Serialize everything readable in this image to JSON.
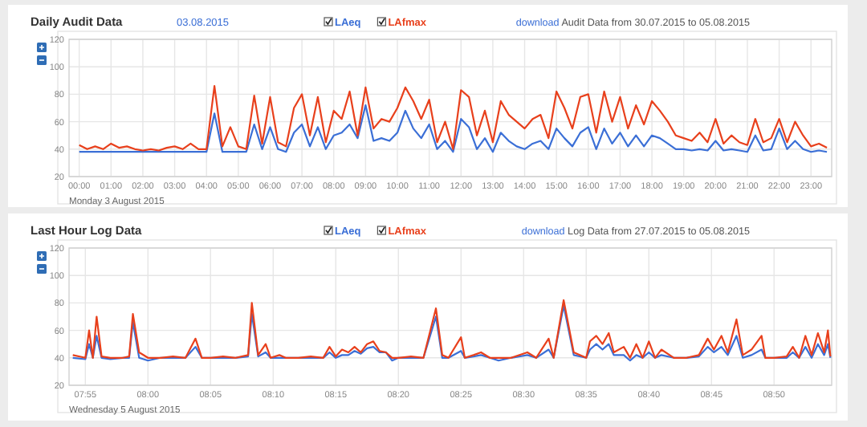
{
  "chart_data": [
    {
      "type": "line",
      "title": "Daily Audit Data",
      "subtitle": "03.08.2015",
      "annotations": [
        "download Audit Data from 30.07.2015 to 05.08.2015",
        "Monday 3 August 2015"
      ],
      "legend": "top",
      "grid": true,
      "marker": "none",
      "line_style": "solid",
      "x": [
        0,
        0.25,
        0.5,
        0.75,
        1,
        1.25,
        1.5,
        1.75,
        2,
        2.25,
        2.5,
        2.75,
        3,
        3.25,
        3.5,
        3.75,
        4,
        4.25,
        4.5,
        4.75,
        5,
        5.25,
        5.5,
        5.75,
        6,
        6.25,
        6.5,
        6.75,
        7,
        7.25,
        7.5,
        7.75,
        8,
        8.25,
        8.5,
        8.75,
        9,
        9.25,
        9.5,
        9.75,
        10,
        10.25,
        10.5,
        10.75,
        11,
        11.25,
        11.5,
        11.75,
        12,
        12.25,
        12.5,
        12.75,
        13,
        13.25,
        13.5,
        13.75,
        14,
        14.25,
        14.5,
        14.75,
        15,
        15.25,
        15.5,
        15.75,
        16,
        16.25,
        16.5,
        16.75,
        17,
        17.25,
        17.5,
        17.75,
        18,
        18.25,
        18.5,
        18.75,
        19,
        19.25,
        19.5,
        19.75,
        20,
        20.25,
        20.5,
        20.75,
        21,
        21.25,
        21.5,
        21.75,
        22,
        22.25,
        22.5,
        22.75,
        23,
        23.25,
        23.5
      ],
      "series": [
        {
          "name": "LAeq",
          "color": "#3b6fd6",
          "values": [
            38,
            38,
            38,
            38,
            38,
            38,
            38,
            38,
            38,
            38,
            38,
            38,
            38,
            38,
            38,
            38,
            38,
            66,
            38,
            38,
            38,
            38,
            58,
            40,
            56,
            40,
            38,
            52,
            58,
            42,
            56,
            40,
            50,
            52,
            58,
            48,
            72,
            46,
            48,
            46,
            52,
            68,
            55,
            48,
            58,
            40,
            46,
            38,
            62,
            56,
            40,
            48,
            38,
            52,
            46,
            42,
            40,
            44,
            46,
            40,
            55,
            48,
            42,
            52,
            56,
            40,
            55,
            44,
            52,
            42,
            50,
            42,
            50,
            48,
            44,
            40,
            40,
            39,
            40,
            39,
            46,
            39,
            40,
            39,
            38,
            50,
            39,
            40,
            55,
            40,
            46,
            40,
            38,
            39,
            38
          ]
        },
        {
          "name": "LAfmax",
          "color": "#e8401c",
          "values": [
            43,
            40,
            42,
            40,
            44,
            41,
            42,
            40,
            39,
            40,
            39,
            41,
            42,
            40,
            44,
            40,
            40,
            86,
            42,
            56,
            42,
            40,
            79,
            44,
            78,
            45,
            42,
            70,
            80,
            50,
            78,
            45,
            68,
            62,
            82,
            50,
            85,
            55,
            62,
            60,
            70,
            85,
            75,
            62,
            76,
            45,
            60,
            40,
            83,
            78,
            50,
            68,
            45,
            75,
            65,
            60,
            55,
            62,
            65,
            48,
            82,
            70,
            55,
            78,
            80,
            52,
            82,
            60,
            78,
            55,
            72,
            58,
            75,
            68,
            60,
            50,
            48,
            46,
            52,
            45,
            62,
            44,
            50,
            45,
            43,
            62,
            45,
            48,
            62,
            45,
            60,
            50,
            42,
            44,
            41
          ]
        }
      ],
      "xlim": [
        -0.32,
        23.65
      ],
      "xticks": [
        {
          "value": 0,
          "label": "00:00"
        },
        {
          "value": 1,
          "label": "01:00"
        },
        {
          "value": 2,
          "label": "02:00"
        },
        {
          "value": 3,
          "label": "03:00"
        },
        {
          "value": 4,
          "label": "04:00"
        },
        {
          "value": 5,
          "label": "05:00"
        },
        {
          "value": 6,
          "label": "06:00"
        },
        {
          "value": 7,
          "label": "07:00"
        },
        {
          "value": 8,
          "label": "08:00"
        },
        {
          "value": 9,
          "label": "09:00"
        },
        {
          "value": 10,
          "label": "10:00"
        },
        {
          "value": 11,
          "label": "11:00"
        },
        {
          "value": 12,
          "label": "12:00"
        },
        {
          "value": 13,
          "label": "13:00"
        },
        {
          "value": 14,
          "label": "14:00"
        },
        {
          "value": 15,
          "label": "15:00"
        },
        {
          "value": 16,
          "label": "16:00"
        },
        {
          "value": 17,
          "label": "17:00"
        },
        {
          "value": 18,
          "label": "18:00"
        },
        {
          "value": 19,
          "label": "19:00"
        },
        {
          "value": 20,
          "label": "20:00"
        },
        {
          "value": 21,
          "label": "21:00"
        },
        {
          "value": 22,
          "label": "22:00"
        },
        {
          "value": 23,
          "label": "23:00"
        }
      ],
      "ylim": [
        20,
        120
      ],
      "yticks": [
        20,
        40,
        60,
        80,
        100,
        120
      ]
    },
    {
      "type": "line",
      "title": "Last Hour Log Data",
      "annotations": [
        "download Log Data from 27.07.2015 to 05.08.2015",
        "Wednesday 5 August 2015"
      ],
      "legend": "top",
      "grid": true,
      "marker": "none",
      "line_style": "solid",
      "x": [
        7.9,
        7.9167,
        7.9217,
        7.9267,
        7.9317,
        7.9383,
        7.95,
        7.9667,
        7.975,
        7.98,
        7.9883,
        8.0,
        8.0167,
        8.0333,
        8.05,
        8.0633,
        8.0717,
        8.0833,
        8.1,
        8.1167,
        8.1333,
        8.1383,
        8.1467,
        8.1567,
        8.1633,
        8.175,
        8.1833,
        8.2,
        8.2167,
        8.2333,
        8.2417,
        8.25,
        8.2583,
        8.2667,
        8.275,
        8.2833,
        8.2917,
        8.3,
        8.3083,
        8.3167,
        8.325,
        8.3333,
        8.35,
        8.3667,
        8.3833,
        8.3917,
        8.4,
        8.4167,
        8.4217,
        8.4333,
        8.4433,
        8.455,
        8.4667,
        8.4833,
        8.505,
        8.5167,
        8.5333,
        8.54,
        8.5533,
        8.5667,
        8.5833,
        8.5883,
        8.5967,
        8.605,
        8.6133,
        8.62,
        8.6333,
        8.6417,
        8.65,
        8.6583,
        8.6667,
        8.675,
        8.6833,
        8.7,
        8.7167,
        8.7333,
        8.745,
        8.7533,
        8.7633,
        8.7717,
        8.7833,
        8.7917,
        8.8033,
        8.8167,
        8.8217,
        8.8333,
        8.85,
        8.8583,
        8.8667,
        8.875,
        8.8833,
        8.8917,
        8.9,
        8.905,
        8.9083
      ],
      "series": [
        {
          "name": "LAeq",
          "color": "#3b6fd6",
          "values": [
            40,
            39,
            50,
            40,
            56,
            40,
            39,
            40,
            40,
            66,
            40,
            38,
            40,
            40,
            40,
            48,
            40,
            40,
            40,
            40,
            41,
            72,
            41,
            44,
            40,
            40,
            40,
            40,
            40,
            40,
            44,
            40,
            42,
            42,
            45,
            43,
            47,
            48,
            44,
            44,
            38,
            40,
            40,
            40,
            70,
            40,
            40,
            45,
            40,
            41,
            42,
            40,
            38,
            40,
            42,
            40,
            46,
            40,
            78,
            42,
            40,
            46,
            50,
            46,
            50,
            42,
            42,
            38,
            42,
            40,
            44,
            40,
            42,
            40,
            40,
            41,
            48,
            44,
            48,
            42,
            56,
            40,
            42,
            46,
            40,
            40,
            40,
            44,
            40,
            48,
            40,
            50,
            42,
            50,
            40
          ]
        },
        {
          "name": "LAfmax",
          "color": "#e8401c",
          "values": [
            42,
            40,
            60,
            40,
            70,
            41,
            40,
            40,
            41,
            72,
            44,
            40,
            40,
            41,
            40,
            54,
            40,
            40,
            41,
            40,
            42,
            80,
            42,
            50,
            40,
            42,
            40,
            40,
            41,
            40,
            48,
            41,
            46,
            44,
            48,
            44,
            50,
            52,
            45,
            44,
            40,
            40,
            41,
            40,
            76,
            42,
            40,
            55,
            40,
            42,
            44,
            40,
            40,
            40,
            44,
            40,
            54,
            40,
            82,
            44,
            40,
            52,
            56,
            50,
            58,
            44,
            48,
            40,
            50,
            40,
            52,
            40,
            46,
            40,
            40,
            42,
            54,
            46,
            56,
            44,
            68,
            42,
            46,
            56,
            40,
            40,
            41,
            48,
            40,
            56,
            42,
            58,
            44,
            60,
            41
          ]
        }
      ],
      "xlim": [
        7.895,
        8.91
      ],
      "xticks": [
        {
          "value": 7.9167,
          "label": "07:55"
        },
        {
          "value": 8.0,
          "label": "08:00"
        },
        {
          "value": 8.0833,
          "label": "08:05"
        },
        {
          "value": 8.1667,
          "label": "08:10"
        },
        {
          "value": 8.25,
          "label": "08:15"
        },
        {
          "value": 8.3333,
          "label": "08:20"
        },
        {
          "value": 8.4167,
          "label": "08:25"
        },
        {
          "value": 8.5,
          "label": "08:30"
        },
        {
          "value": 8.5833,
          "label": "08:35"
        },
        {
          "value": 8.6667,
          "label": "08:40"
        },
        {
          "value": 8.75,
          "label": "08:45"
        },
        {
          "value": 8.8333,
          "label": "08:50"
        }
      ],
      "ylim": [
        20,
        120
      ],
      "yticks": [
        20,
        40,
        60,
        80,
        100,
        120
      ]
    }
  ]
}
